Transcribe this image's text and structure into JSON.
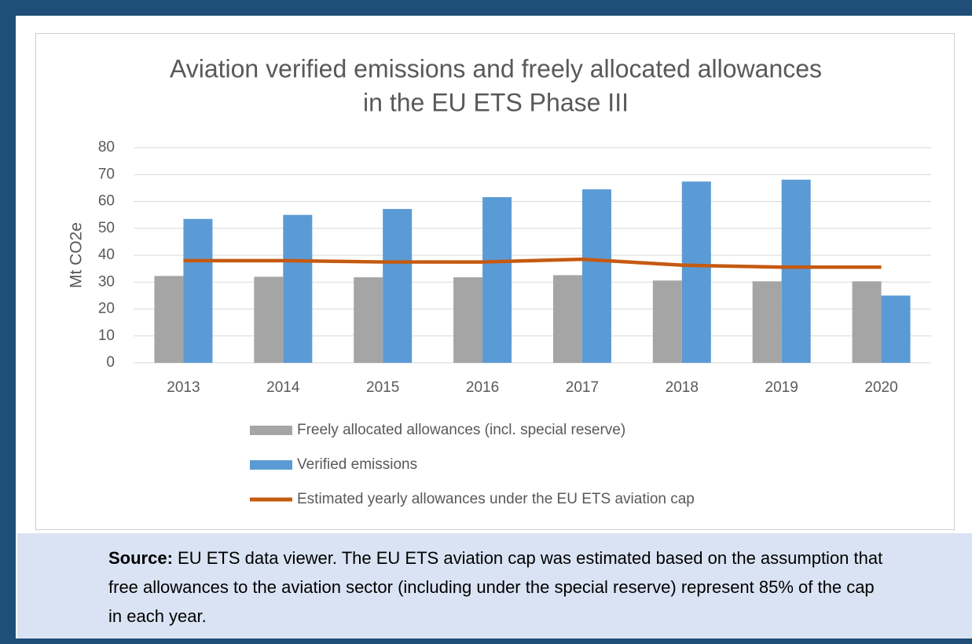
{
  "chart_data": {
    "type": "bar",
    "title": [
      "Aviation verified emissions and freely allocated allowances",
      "in the EU ETS Phase III"
    ],
    "y_label": "Mt CO2e",
    "categories": [
      "2013",
      "2014",
      "2015",
      "2016",
      "2017",
      "2018",
      "2019",
      "2020"
    ],
    "series": [
      {
        "name": "Freely allocated allowances (incl. special reserve)",
        "color": "#a5a5a5",
        "type": "bar",
        "values": [
          32.3,
          32,
          31.8,
          31.8,
          32.6,
          30.6,
          30.3,
          30.3
        ]
      },
      {
        "name": "Verified emissions",
        "color": "#5b9bd5",
        "type": "bar",
        "values": [
          53.5,
          55,
          57.2,
          61.6,
          64.5,
          67.4,
          68.1,
          25
        ]
      },
      {
        "name": "Estimated yearly allowances under the EU ETS aviation cap",
        "color": "#c55a11",
        "type": "line",
        "values": [
          38,
          38,
          37.5,
          37.5,
          38.5,
          36.3,
          35.6,
          35.6
        ]
      }
    ],
    "ylim": [
      0,
      80
    ],
    "yticks": [
      0,
      10,
      20,
      30,
      40,
      50,
      60,
      70,
      80
    ],
    "grid": true
  },
  "source": {
    "label": "Source:",
    "text": "EU ETS data viewer. The EU ETS aviation cap was estimated based on the assumption that free allowances to the aviation sector (including under the special reserve) represent 85% of the cap in each year."
  }
}
